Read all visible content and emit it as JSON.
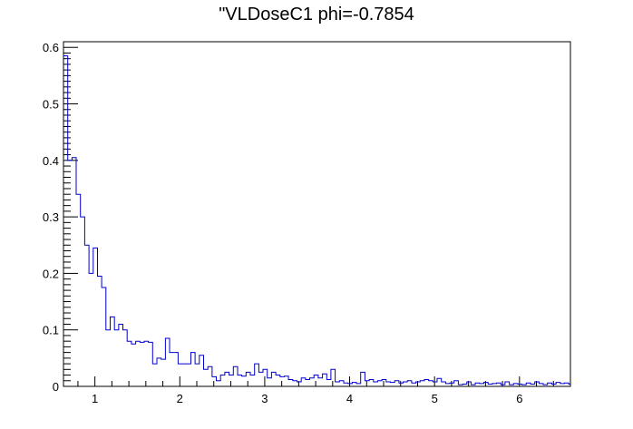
{
  "chart_data": {
    "type": "histogram",
    "title": "\"VLDoseC1 phi=-0.7854",
    "xlabel": "",
    "ylabel": "",
    "xlim": [
      0.63,
      6.6
    ],
    "ylim": [
      0,
      0.61
    ],
    "bin_width": 0.05,
    "x_start": 0.63,
    "x_ticks": [
      1,
      2,
      3,
      4,
      5,
      6
    ],
    "x_tick_labels": [
      "1",
      "2",
      "3",
      "4",
      "5",
      "6"
    ],
    "y_ticks": [
      0,
      0.1,
      0.2,
      0.3,
      0.4,
      0.5,
      0.6
    ],
    "y_tick_labels": [
      "0",
      "0.1",
      "0.2",
      "0.3",
      "0.4",
      "0.5",
      "0.6"
    ],
    "grid": false,
    "line_color": "#0000cc",
    "values": [
      0.585,
      0.4,
      0.405,
      0.34,
      0.3,
      0.25,
      0.2,
      0.245,
      0.195,
      0.175,
      0.1,
      0.123,
      0.1,
      0.11,
      0.1,
      0.08,
      0.075,
      0.08,
      0.078,
      0.08,
      0.078,
      0.04,
      0.05,
      0.048,
      0.085,
      0.06,
      0.06,
      0.04,
      0.04,
      0.04,
      0.06,
      0.04,
      0.055,
      0.03,
      0.035,
      0.017,
      0.01,
      0.02,
      0.025,
      0.02,
      0.035,
      0.02,
      0.018,
      0.025,
      0.02,
      0.04,
      0.025,
      0.03,
      0.015,
      0.025,
      0.02,
      0.017,
      0.018,
      0.012,
      0.01,
      0.008,
      0.015,
      0.012,
      0.015,
      0.02,
      0.015,
      0.022,
      0.012,
      0.03,
      0.008,
      0.01,
      0.006,
      0.005,
      0.007,
      0.005,
      0.025,
      0.01,
      0.012,
      0.008,
      0.01,
      0.012,
      0.008,
      0.007,
      0.01,
      0.006,
      0.008,
      0.01,
      0.006,
      0.008,
      0.01,
      0.012,
      0.01,
      0.008,
      0.014,
      0.008,
      0.005,
      0.006,
      0.01,
      0.003,
      0.004,
      0.008,
      0.003,
      0.006,
      0.005,
      0.007,
      0.004,
      0.005,
      0.006,
      0.003,
      0.008,
      0.003,
      0.005,
      0.004,
      0.003,
      0.006,
      0.004,
      0.008,
      0.005,
      0.003,
      0.006,
      0.004,
      0.007,
      0.005,
      0.006,
      0.004
    ]
  }
}
